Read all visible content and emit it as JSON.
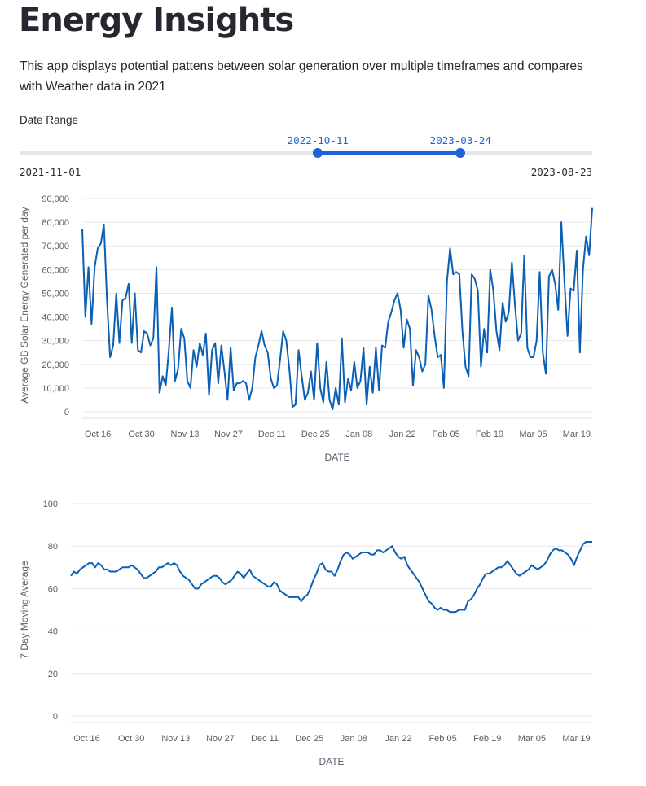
{
  "page": {
    "title": "Energy Insights",
    "description": "This app displays potential pattens between solar generation over multiple timeframes and compares with Weather data in 2021"
  },
  "slider": {
    "label": "Date Range",
    "min_label": "2021-11-01",
    "max_label": "2023-08-23",
    "selected_start": "2022-10-11",
    "selected_end": "2023-03-24",
    "start_fraction": 0.521,
    "end_fraction": 0.77,
    "accent_color": "#1f62d6"
  },
  "chart_data": [
    {
      "type": "line",
      "title": "",
      "xlabel": "DATE",
      "ylabel": "Average GB Solar Energy Generated per day",
      "x_ticks": [
        "Oct 16",
        "Oct 30",
        "Nov 13",
        "Nov 27",
        "Dec 11",
        "Dec 25",
        "Jan 08",
        "Jan 22",
        "Feb 05",
        "Feb 19",
        "Mar 05",
        "Mar 19"
      ],
      "y_ticks": [
        "0",
        "10,000",
        "20,000",
        "30,000",
        "40,000",
        "50,000",
        "60,000",
        "70,000",
        "80,000",
        "90,000"
      ],
      "xlim": [
        "2022-10-11",
        "2023-03-24"
      ],
      "ylim": [
        0,
        90000
      ],
      "grid": true,
      "color": "#0b5fb5",
      "series": [
        {
          "values": [
            77000,
            40000,
            61000,
            37000,
            61000,
            69000,
            71000,
            79000,
            47000,
            23000,
            28000,
            50000,
            29000,
            47000,
            48000,
            54000,
            29000,
            50000,
            26000,
            25000,
            34000,
            33000,
            28000,
            31000,
            61000,
            8000,
            15000,
            11000,
            26000,
            44000,
            13000,
            18000,
            35000,
            31000,
            13000,
            10000,
            26000,
            19000,
            29000,
            24000,
            33000,
            7000,
            26000,
            29000,
            12000,
            28000,
            17000,
            5000,
            27000,
            9000,
            12000,
            12000,
            13000,
            12000,
            5000,
            10000,
            23000,
            28000,
            34000,
            28000,
            25000,
            14000,
            10000,
            11000,
            22000,
            34000,
            30000,
            18000,
            2000,
            3000,
            26000,
            15000,
            5000,
            8000,
            17000,
            5000,
            29000,
            10000,
            4000,
            21000,
            5000,
            1000,
            10000,
            3000,
            31000,
            4000,
            14000,
            9000,
            21000,
            10000,
            13000,
            27000,
            3000,
            19000,
            8000,
            27000,
            9000,
            28000,
            27000,
            38000,
            42000,
            47000,
            50000,
            43000,
            27000,
            39000,
            35000,
            11000,
            26000,
            23000,
            17000,
            20000,
            49000,
            43000,
            32000,
            23000,
            24000,
            10000,
            55000,
            69000,
            58000,
            59000,
            58000,
            34000,
            19000,
            15000,
            58000,
            56000,
            51000,
            19000,
            35000,
            25000,
            60000,
            51000,
            34000,
            26000,
            46000,
            38000,
            42000,
            63000,
            45000,
            30000,
            33000,
            66000,
            27000,
            23000,
            23000,
            30000,
            59000,
            25000,
            16000,
            57000,
            60000,
            54000,
            43000,
            80000,
            55000,
            32000,
            52000,
            51000,
            68000,
            25000,
            60000,
            74000,
            66000,
            86000
          ]
        }
      ]
    },
    {
      "type": "line",
      "title": "",
      "xlabel": "DATE",
      "ylabel": "7 Day Moving Average",
      "x_ticks": [
        "Oct 16",
        "Oct 30",
        "Nov 13",
        "Nov 27",
        "Dec 11",
        "Dec 25",
        "Jan 08",
        "Jan 22",
        "Feb 05",
        "Feb 19",
        "Mar 05",
        "Mar 19"
      ],
      "y_ticks": [
        "0",
        "20",
        "40",
        "60",
        "80",
        "100"
      ],
      "xlim": [
        "2022-10-11",
        "2023-03-24"
      ],
      "ylim": [
        0,
        100
      ],
      "grid": true,
      "color": "#0b5fb5",
      "series": [
        {
          "values": [
            66,
            68,
            67,
            69,
            70,
            71,
            72,
            72,
            70,
            72,
            71,
            69,
            69,
            68,
            68,
            68,
            69,
            70,
            70,
            70,
            71,
            70,
            69,
            67,
            65,
            65,
            66,
            67,
            68,
            70,
            70,
            71,
            72,
            71,
            72,
            71,
            68,
            66,
            65,
            64,
            62,
            60,
            60,
            62,
            63,
            64,
            65,
            66,
            66,
            65,
            63,
            62,
            63,
            64,
            66,
            68,
            67,
            65,
            67,
            69,
            66,
            65,
            64,
            63,
            62,
            61,
            61,
            63,
            62,
            59,
            58,
            57,
            56,
            56,
            56,
            56,
            54,
            56,
            57,
            60,
            64,
            67,
            71,
            72,
            69,
            68,
            68,
            66,
            69,
            73,
            76,
            77,
            76,
            74,
            75,
            76,
            77,
            77,
            77,
            76,
            76,
            78,
            78,
            77,
            78,
            79,
            80,
            77,
            75,
            74,
            75,
            71,
            69,
            67,
            65,
            63,
            60,
            57,
            54,
            53,
            51,
            50,
            51,
            50,
            50,
            49,
            49,
            49,
            50,
            50,
            50,
            54,
            55,
            57,
            60,
            62,
            65,
            67,
            67,
            68,
            69,
            70,
            70,
            71,
            73,
            71,
            69,
            67,
            66,
            67,
            68,
            69,
            71,
            70,
            69,
            70,
            71,
            73,
            76,
            78,
            79,
            78,
            78,
            77,
            76,
            74,
            71,
            75,
            78,
            81,
            82,
            82,
            82
          ]
        }
      ]
    }
  ]
}
